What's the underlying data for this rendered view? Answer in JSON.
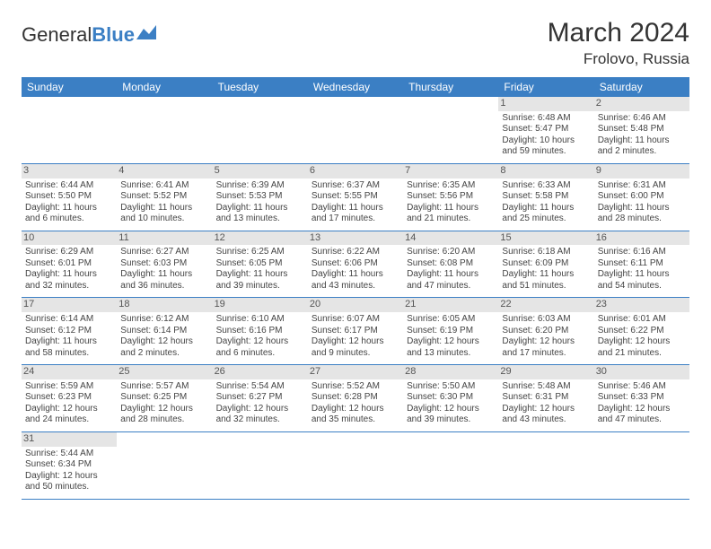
{
  "brand": {
    "part1": "General",
    "part2": "Blue"
  },
  "title": "March 2024",
  "location": "Frolovo, Russia",
  "colors": {
    "header_bg": "#3b7fc4",
    "header_text": "#ffffff",
    "daynum_bg": "#e5e5e5",
    "row_border": "#3b7fc4",
    "text": "#444444",
    "page_bg": "#ffffff"
  },
  "weekdays": [
    "Sunday",
    "Monday",
    "Tuesday",
    "Wednesday",
    "Thursday",
    "Friday",
    "Saturday"
  ],
  "weeks": [
    [
      {
        "day": "",
        "lines": [
          "",
          "",
          "",
          ""
        ]
      },
      {
        "day": "",
        "lines": [
          "",
          "",
          "",
          ""
        ]
      },
      {
        "day": "",
        "lines": [
          "",
          "",
          "",
          ""
        ]
      },
      {
        "day": "",
        "lines": [
          "",
          "",
          "",
          ""
        ]
      },
      {
        "day": "",
        "lines": [
          "",
          "",
          "",
          ""
        ]
      },
      {
        "day": "1",
        "lines": [
          "Sunrise: 6:48 AM",
          "Sunset: 5:47 PM",
          "Daylight: 10 hours",
          "and 59 minutes."
        ]
      },
      {
        "day": "2",
        "lines": [
          "Sunrise: 6:46 AM",
          "Sunset: 5:48 PM",
          "Daylight: 11 hours",
          "and 2 minutes."
        ]
      }
    ],
    [
      {
        "day": "3",
        "lines": [
          "Sunrise: 6:44 AM",
          "Sunset: 5:50 PM",
          "Daylight: 11 hours",
          "and 6 minutes."
        ]
      },
      {
        "day": "4",
        "lines": [
          "Sunrise: 6:41 AM",
          "Sunset: 5:52 PM",
          "Daylight: 11 hours",
          "and 10 minutes."
        ]
      },
      {
        "day": "5",
        "lines": [
          "Sunrise: 6:39 AM",
          "Sunset: 5:53 PM",
          "Daylight: 11 hours",
          "and 13 minutes."
        ]
      },
      {
        "day": "6",
        "lines": [
          "Sunrise: 6:37 AM",
          "Sunset: 5:55 PM",
          "Daylight: 11 hours",
          "and 17 minutes."
        ]
      },
      {
        "day": "7",
        "lines": [
          "Sunrise: 6:35 AM",
          "Sunset: 5:56 PM",
          "Daylight: 11 hours",
          "and 21 minutes."
        ]
      },
      {
        "day": "8",
        "lines": [
          "Sunrise: 6:33 AM",
          "Sunset: 5:58 PM",
          "Daylight: 11 hours",
          "and 25 minutes."
        ]
      },
      {
        "day": "9",
        "lines": [
          "Sunrise: 6:31 AM",
          "Sunset: 6:00 PM",
          "Daylight: 11 hours",
          "and 28 minutes."
        ]
      }
    ],
    [
      {
        "day": "10",
        "lines": [
          "Sunrise: 6:29 AM",
          "Sunset: 6:01 PM",
          "Daylight: 11 hours",
          "and 32 minutes."
        ]
      },
      {
        "day": "11",
        "lines": [
          "Sunrise: 6:27 AM",
          "Sunset: 6:03 PM",
          "Daylight: 11 hours",
          "and 36 minutes."
        ]
      },
      {
        "day": "12",
        "lines": [
          "Sunrise: 6:25 AM",
          "Sunset: 6:05 PM",
          "Daylight: 11 hours",
          "and 39 minutes."
        ]
      },
      {
        "day": "13",
        "lines": [
          "Sunrise: 6:22 AM",
          "Sunset: 6:06 PM",
          "Daylight: 11 hours",
          "and 43 minutes."
        ]
      },
      {
        "day": "14",
        "lines": [
          "Sunrise: 6:20 AM",
          "Sunset: 6:08 PM",
          "Daylight: 11 hours",
          "and 47 minutes."
        ]
      },
      {
        "day": "15",
        "lines": [
          "Sunrise: 6:18 AM",
          "Sunset: 6:09 PM",
          "Daylight: 11 hours",
          "and 51 minutes."
        ]
      },
      {
        "day": "16",
        "lines": [
          "Sunrise: 6:16 AM",
          "Sunset: 6:11 PM",
          "Daylight: 11 hours",
          "and 54 minutes."
        ]
      }
    ],
    [
      {
        "day": "17",
        "lines": [
          "Sunrise: 6:14 AM",
          "Sunset: 6:12 PM",
          "Daylight: 11 hours",
          "and 58 minutes."
        ]
      },
      {
        "day": "18",
        "lines": [
          "Sunrise: 6:12 AM",
          "Sunset: 6:14 PM",
          "Daylight: 12 hours",
          "and 2 minutes."
        ]
      },
      {
        "day": "19",
        "lines": [
          "Sunrise: 6:10 AM",
          "Sunset: 6:16 PM",
          "Daylight: 12 hours",
          "and 6 minutes."
        ]
      },
      {
        "day": "20",
        "lines": [
          "Sunrise: 6:07 AM",
          "Sunset: 6:17 PM",
          "Daylight: 12 hours",
          "and 9 minutes."
        ]
      },
      {
        "day": "21",
        "lines": [
          "Sunrise: 6:05 AM",
          "Sunset: 6:19 PM",
          "Daylight: 12 hours",
          "and 13 minutes."
        ]
      },
      {
        "day": "22",
        "lines": [
          "Sunrise: 6:03 AM",
          "Sunset: 6:20 PM",
          "Daylight: 12 hours",
          "and 17 minutes."
        ]
      },
      {
        "day": "23",
        "lines": [
          "Sunrise: 6:01 AM",
          "Sunset: 6:22 PM",
          "Daylight: 12 hours",
          "and 21 minutes."
        ]
      }
    ],
    [
      {
        "day": "24",
        "lines": [
          "Sunrise: 5:59 AM",
          "Sunset: 6:23 PM",
          "Daylight: 12 hours",
          "and 24 minutes."
        ]
      },
      {
        "day": "25",
        "lines": [
          "Sunrise: 5:57 AM",
          "Sunset: 6:25 PM",
          "Daylight: 12 hours",
          "and 28 minutes."
        ]
      },
      {
        "day": "26",
        "lines": [
          "Sunrise: 5:54 AM",
          "Sunset: 6:27 PM",
          "Daylight: 12 hours",
          "and 32 minutes."
        ]
      },
      {
        "day": "27",
        "lines": [
          "Sunrise: 5:52 AM",
          "Sunset: 6:28 PM",
          "Daylight: 12 hours",
          "and 35 minutes."
        ]
      },
      {
        "day": "28",
        "lines": [
          "Sunrise: 5:50 AM",
          "Sunset: 6:30 PM",
          "Daylight: 12 hours",
          "and 39 minutes."
        ]
      },
      {
        "day": "29",
        "lines": [
          "Sunrise: 5:48 AM",
          "Sunset: 6:31 PM",
          "Daylight: 12 hours",
          "and 43 minutes."
        ]
      },
      {
        "day": "30",
        "lines": [
          "Sunrise: 5:46 AM",
          "Sunset: 6:33 PM",
          "Daylight: 12 hours",
          "and 47 minutes."
        ]
      }
    ],
    [
      {
        "day": "31",
        "lines": [
          "Sunrise: 5:44 AM",
          "Sunset: 6:34 PM",
          "Daylight: 12 hours",
          "and 50 minutes."
        ]
      },
      {
        "day": "",
        "lines": [
          "",
          "",
          "",
          ""
        ]
      },
      {
        "day": "",
        "lines": [
          "",
          "",
          "",
          ""
        ]
      },
      {
        "day": "",
        "lines": [
          "",
          "",
          "",
          ""
        ]
      },
      {
        "day": "",
        "lines": [
          "",
          "",
          "",
          ""
        ]
      },
      {
        "day": "",
        "lines": [
          "",
          "",
          "",
          ""
        ]
      },
      {
        "day": "",
        "lines": [
          "",
          "",
          "",
          ""
        ]
      }
    ]
  ]
}
